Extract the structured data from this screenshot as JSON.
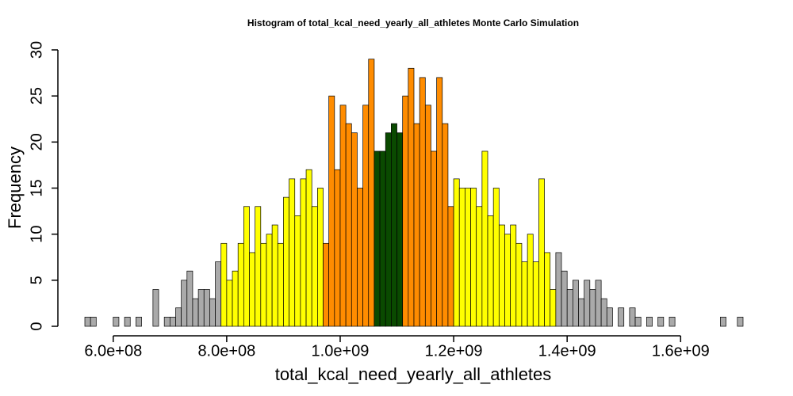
{
  "chart_data": {
    "type": "histogram",
    "title": "Histogram of  total_kcal_need_yearly_all_athletes  Monte Carlo Simulation",
    "xlabel": "total_kcal_need_yearly_all_athletes",
    "ylabel": "Frequency",
    "bins": [
      550000000.0,
      560000000.0,
      570000000.0,
      580000000.0,
      590000000.0,
      600000000.0,
      610000000.0,
      620000000.0,
      630000000.0,
      640000000.0,
      650000000.0,
      660000000.0,
      670000000.0,
      680000000.0,
      690000000.0,
      700000000.0,
      710000000.0,
      720000000.0,
      730000000.0,
      740000000.0,
      750000000.0,
      760000000.0,
      770000000.0,
      780000000.0,
      790000000.0,
      800000000.0,
      810000000.0,
      820000000.0,
      830000000.0,
      840000000.0,
      850000000.0,
      860000000.0,
      870000000.0,
      880000000.0,
      890000000.0,
      900000000.0,
      910000000.0,
      920000000.0,
      930000000.0,
      940000000.0,
      950000000.0,
      960000000.0,
      970000000.0,
      980000000.0,
      990000000.0,
      1000000000.0,
      1010000000.0,
      1020000000.0,
      1030000000.0,
      1040000000.0,
      1050000000.0,
      1060000000.0,
      1070000000.0,
      1080000000.0,
      1090000000.0,
      1100000000.0,
      1110000000.0,
      1120000000.0,
      1130000000.0,
      1140000000.0,
      1150000000.0,
      1160000000.0,
      1170000000.0,
      1180000000.0,
      1190000000.0,
      1200000000.0,
      1210000000.0,
      1220000000.0,
      1230000000.0,
      1240000000.0,
      1250000000.0,
      1260000000.0,
      1270000000.0,
      1280000000.0,
      1290000000.0,
      1300000000.0,
      1310000000.0,
      1320000000.0,
      1330000000.0,
      1340000000.0,
      1350000000.0,
      1360000000.0,
      1370000000.0,
      1380000000.0,
      1390000000.0,
      1400000000.0,
      1410000000.0,
      1420000000.0,
      1430000000.0,
      1440000000.0,
      1450000000.0,
      1460000000.0,
      1470000000.0,
      1480000000.0,
      1490000000.0,
      1500000000.0,
      1510000000.0,
      1520000000.0,
      1530000000.0,
      1540000000.0,
      1550000000.0,
      1560000000.0,
      1570000000.0,
      1580000000.0,
      1590000000.0,
      1600000000.0,
      1610000000.0,
      1620000000.0,
      1630000000.0,
      1640000000.0,
      1650000000.0,
      1660000000.0,
      1670000000.0,
      1680000000.0,
      1690000000.0,
      1700000000.0,
      1710000000.0
    ],
    "counts": [
      1,
      1,
      0,
      0,
      0,
      1,
      0,
      1,
      0,
      1,
      0,
      0,
      4,
      0,
      1,
      1,
      2,
      5,
      6,
      3,
      4,
      4,
      3,
      7,
      9,
      5,
      6,
      9,
      13,
      8,
      13,
      9,
      10,
      11,
      9,
      14,
      16,
      12,
      16,
      17,
      13,
      15,
      9,
      25,
      17,
      24,
      22,
      21,
      15,
      24,
      29,
      19,
      19,
      21,
      22,
      21,
      25,
      28,
      22,
      27,
      24,
      19,
      27,
      22,
      13,
      16,
      15,
      15,
      15,
      13,
      19,
      12,
      15,
      11,
      10,
      11,
      9,
      7,
      10,
      7,
      16,
      8,
      4,
      8,
      6,
      4,
      5,
      3,
      5,
      4,
      5,
      3,
      2,
      0,
      2,
      0,
      2,
      1,
      0,
      1,
      0,
      1,
      0,
      1,
      0,
      0,
      0,
      0,
      0,
      0,
      0,
      0,
      1,
      0,
      0,
      1
    ],
    "colors": [
      "#aaaaaa",
      "#aaaaaa",
      "#aaaaaa",
      "#aaaaaa",
      "#aaaaaa",
      "#aaaaaa",
      "#aaaaaa",
      "#aaaaaa",
      "#aaaaaa",
      "#aaaaaa",
      "#aaaaaa",
      "#aaaaaa",
      "#aaaaaa",
      "#aaaaaa",
      "#aaaaaa",
      "#aaaaaa",
      "#aaaaaa",
      "#aaaaaa",
      "#aaaaaa",
      "#aaaaaa",
      "#aaaaaa",
      "#aaaaaa",
      "#aaaaaa",
      "#aaaaaa",
      "#ffff00",
      "#ffff00",
      "#ffff00",
      "#ffff00",
      "#ffff00",
      "#ffff00",
      "#ffff00",
      "#ffff00",
      "#ffff00",
      "#ffff00",
      "#ffff00",
      "#ffff00",
      "#ffff00",
      "#ffff00",
      "#ffff00",
      "#ffff00",
      "#ffff00",
      "#ffff00",
      "#ff8c00",
      "#ff8c00",
      "#ff8c00",
      "#ff8c00",
      "#ff8c00",
      "#ff8c00",
      "#ff8c00",
      "#ff8c00",
      "#ff8c00",
      "#0a4a00",
      "#0a4a00",
      "#0a4a00",
      "#0a4a00",
      "#0a4a00",
      "#ff8c00",
      "#ff8c00",
      "#ff8c00",
      "#ff8c00",
      "#ff8c00",
      "#ff8c00",
      "#ff8c00",
      "#ff8c00",
      "#ff8c00",
      "#ffff00",
      "#ffff00",
      "#ffff00",
      "#ffff00",
      "#ffff00",
      "#ffff00",
      "#ffff00",
      "#ffff00",
      "#ffff00",
      "#ffff00",
      "#ffff00",
      "#ffff00",
      "#ffff00",
      "#ffff00",
      "#ffff00",
      "#ffff00",
      "#ffff00",
      "#ffff00",
      "#aaaaaa",
      "#aaaaaa",
      "#aaaaaa",
      "#aaaaaa",
      "#aaaaaa",
      "#aaaaaa",
      "#aaaaaa",
      "#aaaaaa",
      "#aaaaaa",
      "#aaaaaa",
      "#aaaaaa",
      "#aaaaaa",
      "#aaaaaa",
      "#aaaaaa",
      "#aaaaaa",
      "#aaaaaa",
      "#aaaaaa",
      "#aaaaaa",
      "#aaaaaa",
      "#aaaaaa",
      "#aaaaaa",
      "#aaaaaa",
      "#aaaaaa",
      "#aaaaaa",
      "#aaaaaa",
      "#aaaaaa",
      "#aaaaaa",
      "#aaaaaa",
      "#aaaaaa",
      "#aaaaaa",
      "#aaaaaa",
      "#aaaaaa",
      "#aaaaaa"
    ],
    "xlim": [
      550000000.0,
      1710000000.0
    ],
    "ylim": [
      0,
      30
    ],
    "xticks": [
      {
        "value": 600000000.0,
        "label": "6.0e+08"
      },
      {
        "value": 800000000.0,
        "label": "8.0e+08"
      },
      {
        "value": 1000000000.0,
        "label": "1.0e+09"
      },
      {
        "value": 1200000000.0,
        "label": "1.2e+09"
      },
      {
        "value": 1400000000.0,
        "label": "1.4e+09"
      },
      {
        "value": 1600000000.0,
        "label": "1.6e+09"
      }
    ],
    "yticks": [
      0,
      5,
      10,
      15,
      20,
      25,
      30
    ]
  }
}
